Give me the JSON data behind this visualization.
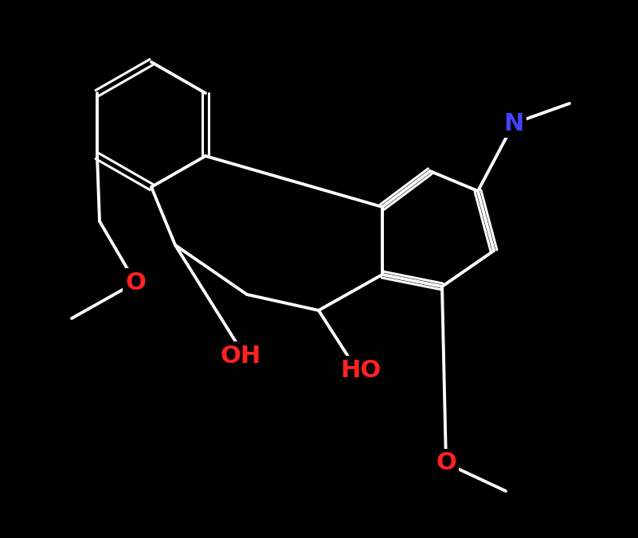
{
  "background_color": "#000000",
  "bond_color": "#ffffff",
  "N_color": "#4444ff",
  "O_color": "#ff2222",
  "C_color": "#ffffff",
  "atoms": {
    "N": {
      "label": "N",
      "color": "#3333ff"
    },
    "O1": {
      "label": "O",
      "color": "#ff2222"
    },
    "O2": {
      "label": "O",
      "color": "#ff2222"
    },
    "OH1": {
      "label": "OH",
      "color": "#ff2222"
    },
    "OH2": {
      "label": "HO",
      "color": "#ff2222"
    }
  },
  "figsize": [
    8.01,
    6.76
  ],
  "dpi": 100
}
